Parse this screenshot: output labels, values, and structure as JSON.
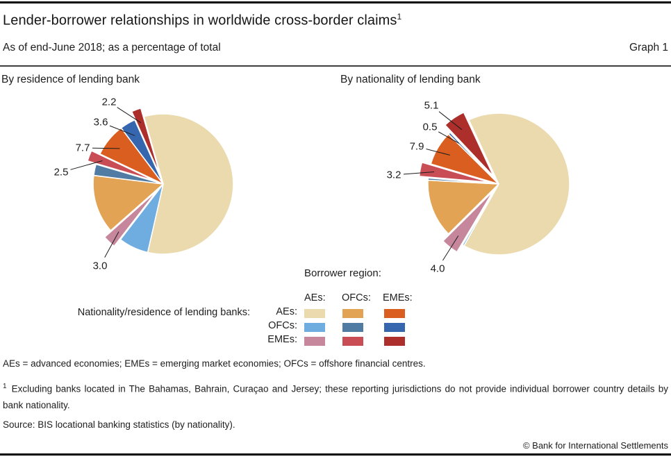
{
  "header": {
    "title": "Lender-borrower relationships in worldwide cross-border claims",
    "title_footnote_marker": "1",
    "subtitle": "As of end-June 2018; as a percentage of total",
    "graph_label": "Graph 1"
  },
  "panels": [
    {
      "title": "By residence of lending bank"
    },
    {
      "title": "By nationality of lending bank"
    }
  ],
  "legend": {
    "borrower_header": "Borrower region:",
    "lender_header": "Nationality/residence of lending banks:",
    "columns": [
      "AEs:",
      "OFCs:",
      "EMEs:"
    ],
    "rows": [
      "AEs:",
      "OFCs:",
      "EMEs:"
    ],
    "colors": [
      [
        "#EADAAD",
        "#E2A355",
        "#D95E20"
      ],
      [
        "#6FACDF",
        "#507CA4",
        "#3566AE"
      ],
      [
        "#C6869B",
        "#C84D55",
        "#AC2F2C"
      ]
    ]
  },
  "chart_data": [
    {
      "type": "pie",
      "title": "By residence of lending bank",
      "unit": "percentage of total",
      "start_angle": -16,
      "slices": [
        {
          "lender": "AEs",
          "borrower": "AEs",
          "value": 58.0,
          "label": null,
          "estimated": true,
          "color": "#EADAAD",
          "exploded": false
        },
        {
          "lender": "OFCs",
          "borrower": "AEs",
          "value": 6.9,
          "label": null,
          "estimated": true,
          "color": "#6FACDF",
          "exploded": false
        },
        {
          "lender": "EMEs",
          "borrower": "AEs",
          "value": 3.0,
          "label": "3.0",
          "estimated": false,
          "color": "#C6869B",
          "exploded": true
        },
        {
          "lender": "AEs",
          "borrower": "OFCs",
          "value": 13.5,
          "label": null,
          "estimated": true,
          "color": "#E2A355",
          "exploded": false
        },
        {
          "lender": "OFCs",
          "borrower": "OFCs",
          "value": 2.6,
          "label": null,
          "estimated": true,
          "color": "#507CA4",
          "exploded": false
        },
        {
          "lender": "EMEs",
          "borrower": "OFCs",
          "value": 2.5,
          "label": "2.5",
          "estimated": false,
          "color": "#C84D55",
          "exploded": true
        },
        {
          "lender": "AEs",
          "borrower": "EMEs",
          "value": 7.7,
          "label": "7.7",
          "estimated": false,
          "color": "#D95E20",
          "exploded": false
        },
        {
          "lender": "OFCs",
          "borrower": "EMEs",
          "value": 3.6,
          "label": "3.6",
          "estimated": false,
          "color": "#3566AE",
          "exploded": false
        },
        {
          "lender": "EMEs",
          "borrower": "EMEs",
          "value": 2.2,
          "label": "2.2",
          "estimated": false,
          "color": "#AC2F2C",
          "exploded": true
        }
      ]
    },
    {
      "type": "pie",
      "title": "By nationality of lending bank",
      "unit": "percentage of total",
      "start_angle": -25,
      "slices": [
        {
          "lender": "AEs",
          "borrower": "AEs",
          "value": 65.1,
          "label": null,
          "estimated": true,
          "color": "#EADAAD",
          "exploded": false
        },
        {
          "lender": "OFCs",
          "borrower": "AEs",
          "value": 0.4,
          "label": null,
          "estimated": true,
          "color": "#6FACDF",
          "exploded": false
        },
        {
          "lender": "EMEs",
          "borrower": "AEs",
          "value": 4.0,
          "label": "4.0",
          "estimated": false,
          "color": "#C6869B",
          "exploded": true
        },
        {
          "lender": "AEs",
          "borrower": "OFCs",
          "value": 13.3,
          "label": null,
          "estimated": true,
          "color": "#E2A355",
          "exploded": false
        },
        {
          "lender": "OFCs",
          "borrower": "OFCs",
          "value": 0.5,
          "label": null,
          "estimated": true,
          "color": "#507CA4",
          "exploded": false
        },
        {
          "lender": "EMEs",
          "borrower": "OFCs",
          "value": 3.2,
          "label": "3.2",
          "estimated": false,
          "color": "#C84D55",
          "exploded": true
        },
        {
          "lender": "AEs",
          "borrower": "EMEs",
          "value": 7.9,
          "label": "7.9",
          "estimated": false,
          "color": "#D95E20",
          "exploded": false
        },
        {
          "lender": "OFCs",
          "borrower": "EMEs",
          "value": 0.5,
          "label": "0.5",
          "estimated": false,
          "color": "#3566AE",
          "exploded": false
        },
        {
          "lender": "EMEs",
          "borrower": "EMEs",
          "value": 5.1,
          "label": "5.1",
          "estimated": false,
          "color": "#AC2F2C",
          "exploded": true
        }
      ]
    }
  ],
  "footnotes": {
    "abbreviations": "AEs = advanced economies; EMEs = emerging market economies; OFCs = offshore financial centres.",
    "footnote1_marker": "1",
    "footnote1": "Excluding banks located in The Bahamas, Bahrain, Curaçao and Jersey; these reporting jurisdictions do not provide individual borrower country details by bank nationality.",
    "source": "Source: BIS locational banking statistics (by nationality).",
    "copyright": "© Bank for International Settlements"
  }
}
